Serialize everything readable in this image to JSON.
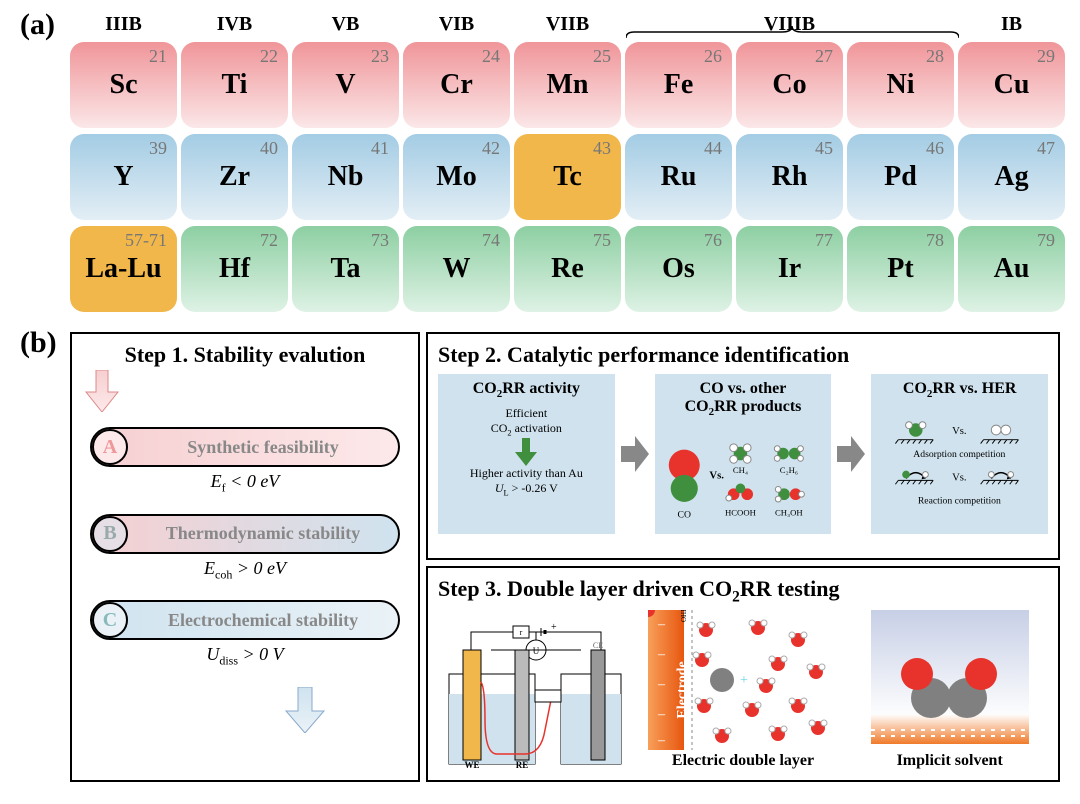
{
  "panel_labels": {
    "a": "(a)",
    "b": "(b)"
  },
  "periodic": {
    "groups": [
      "IIIB",
      "IVB",
      "VB",
      "VIB",
      "VIIB",
      "",
      "VIIIB",
      "",
      "IB"
    ],
    "rows": [
      [
        {
          "sym": "Sc",
          "num": "21"
        },
        {
          "sym": "Ti",
          "num": "22"
        },
        {
          "sym": "V",
          "num": "23"
        },
        {
          "sym": "Cr",
          "num": "24"
        },
        {
          "sym": "Mn",
          "num": "25"
        },
        {
          "sym": "Fe",
          "num": "26"
        },
        {
          "sym": "Co",
          "num": "27"
        },
        {
          "sym": "Ni",
          "num": "28"
        },
        {
          "sym": "Cu",
          "num": "29"
        }
      ],
      [
        {
          "sym": "Y",
          "num": "39"
        },
        {
          "sym": "Zr",
          "num": "40"
        },
        {
          "sym": "Nb",
          "num": "41"
        },
        {
          "sym": "Mo",
          "num": "42"
        },
        {
          "sym": "Tc",
          "num": "43",
          "orange": true
        },
        {
          "sym": "Ru",
          "num": "44"
        },
        {
          "sym": "Rh",
          "num": "45"
        },
        {
          "sym": "Pd",
          "num": "46"
        },
        {
          "sym": "Ag",
          "num": "47"
        }
      ],
      [
        {
          "sym": "La-Lu",
          "num": "57-71",
          "orange": true
        },
        {
          "sym": "Hf",
          "num": "72"
        },
        {
          "sym": "Ta",
          "num": "73"
        },
        {
          "sym": "W",
          "num": "74"
        },
        {
          "sym": "Re",
          "num": "75"
        },
        {
          "sym": "Os",
          "num": "76"
        },
        {
          "sym": "Ir",
          "num": "77"
        },
        {
          "sym": "Pt",
          "num": "78"
        },
        {
          "sym": "Au",
          "num": "79"
        }
      ]
    ],
    "row_colors": {
      "row1": "#f09599",
      "row2": "#a3cce4",
      "row3": "#8dcfa2",
      "orange": "#f2b74a"
    }
  },
  "step1": {
    "title": "Step 1. Stability evalution",
    "items": [
      {
        "letter": "A",
        "label": "Synthetic feasibility",
        "criterion_html": "<i>E</i><sub>f</sub> < 0 eV"
      },
      {
        "letter": "B",
        "label": "Thermodynamic stability",
        "criterion_html": "<i>E</i><sub>coh</sub> > 0 eV"
      },
      {
        "letter": "C",
        "label": "Electrochemical stability",
        "criterion_html": "<i>U</i><sub>diss</sub> > 0 V"
      }
    ]
  },
  "step2": {
    "title": "Step 2. Catalytic performance identification",
    "boxes": [
      {
        "title_html": "CO<sub>2</sub>RR activity",
        "line1_html": "Efficient<br>CO<sub>2</sub> activation",
        "line2_html": "Higher activity than Au<br><i>U</i><sub>L</sub> > -0.26 V"
      },
      {
        "title_html": "CO vs. other<br>CO<sub>2</sub>RR products",
        "mols": [
          "CO",
          "CH₄",
          "C₂H₆",
          "HCOOH",
          "CH₃OH"
        ],
        "vs": "Vs."
      },
      {
        "title_html": "CO<sub>2</sub>RR vs. HER",
        "l1": "Adsorption competition",
        "l2": "Reaction competition",
        "vs": "Vs."
      }
    ]
  },
  "step3": {
    "title_html": "Step 3. Double layer driven CO<sub>2</sub>RR testing",
    "items": [
      {
        "label": "",
        "tags": [
          "WE",
          "CE",
          "RE",
          "U"
        ]
      },
      {
        "label": "Electric double layer",
        "tag": "Electrode"
      },
      {
        "label": "Implicit solvent"
      }
    ]
  },
  "colors": {
    "bluebox": "#cfe2ed",
    "electrode_orange": "#f07b2a",
    "water_red": "#e8322c",
    "atom_gray": "#808080",
    "atom_green": "#3f8f3e",
    "arrow_gray": "#888888",
    "pink": "#f6cfd1",
    "blue": "#cfe3ef"
  }
}
